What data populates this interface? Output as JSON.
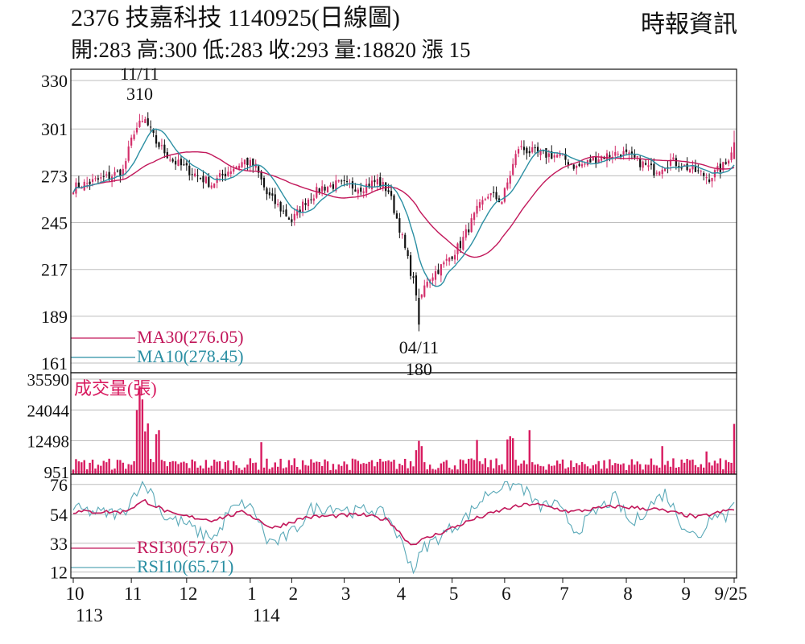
{
  "header": {
    "title": "2376  技嘉科技 1140925(日線圖)",
    "quote": "開:283 高:300 低:283 收:293 量:18820 漲 15",
    "source": "時報資訊"
  },
  "colors": {
    "grid": "#bdbdbd",
    "ma30": "#c2185b",
    "ma10": "#2b8fa3",
    "up": "#d32f6b",
    "down": "#111111",
    "volume": "#d81b60",
    "rsi30": "#c2185b",
    "rsi10": "#5aa9b8"
  },
  "chart_data": [
    {
      "type": "candlestick",
      "y_ticks": [
        "330",
        "301",
        "273",
        "245",
        "217",
        "189",
        "161"
      ],
      "ylim": [
        161,
        330
      ],
      "annotations": [
        {
          "date": "11/11",
          "value": "310"
        },
        {
          "date": "04/11",
          "value": "180"
        }
      ],
      "legend": [
        {
          "name": "MA30(276.05)",
          "color": "#c2185b"
        },
        {
          "name": "MA10(278.45)",
          "color": "#2b8fa3"
        }
      ],
      "anchors": [
        {
          "i": 0,
          "v": 266
        },
        {
          "i": 12,
          "v": 272
        },
        {
          "i": 18,
          "v": 276
        },
        {
          "i": 22,
          "v": 300
        },
        {
          "i": 26,
          "v": 306
        },
        {
          "i": 30,
          "v": 293
        },
        {
          "i": 36,
          "v": 282
        },
        {
          "i": 44,
          "v": 274
        },
        {
          "i": 50,
          "v": 268
        },
        {
          "i": 56,
          "v": 276
        },
        {
          "i": 62,
          "v": 282
        },
        {
          "i": 66,
          "v": 278
        },
        {
          "i": 70,
          "v": 262
        },
        {
          "i": 74,
          "v": 255
        },
        {
          "i": 79,
          "v": 246
        },
        {
          "i": 84,
          "v": 258
        },
        {
          "i": 90,
          "v": 266
        },
        {
          "i": 96,
          "v": 268
        },
        {
          "i": 104,
          "v": 266
        },
        {
          "i": 110,
          "v": 270
        },
        {
          "i": 114,
          "v": 264
        },
        {
          "i": 118,
          "v": 242
        },
        {
          "i": 122,
          "v": 216
        },
        {
          "i": 125,
          "v": 197
        },
        {
          "i": 128,
          "v": 211
        },
        {
          "i": 134,
          "v": 220
        },
        {
          "i": 140,
          "v": 232
        },
        {
          "i": 146,
          "v": 252
        },
        {
          "i": 150,
          "v": 262
        },
        {
          "i": 155,
          "v": 258
        },
        {
          "i": 161,
          "v": 290
        },
        {
          "i": 168,
          "v": 286
        },
        {
          "i": 176,
          "v": 285
        },
        {
          "i": 182,
          "v": 278
        },
        {
          "i": 190,
          "v": 284
        },
        {
          "i": 198,
          "v": 287
        },
        {
          "i": 204,
          "v": 282
        },
        {
          "i": 210,
          "v": 276
        },
        {
          "i": 216,
          "v": 282
        },
        {
          "i": 222,
          "v": 278
        },
        {
          "i": 230,
          "v": 272
        },
        {
          "i": 236,
          "v": 280
        },
        {
          "i": 239,
          "v": 293
        }
      ],
      "sessions": 240
    },
    {
      "type": "bar",
      "title": "成交量(張)",
      "y_ticks": [
        "35590",
        "24044",
        "12498",
        "951"
      ],
      "ylim": [
        0,
        35590
      ],
      "spikes": [
        {
          "i": 23,
          "v": 24000
        },
        {
          "i": 24,
          "v": 33000
        },
        {
          "i": 25,
          "v": 28000
        },
        {
          "i": 26,
          "v": 16000
        },
        {
          "i": 27,
          "v": 19000
        },
        {
          "i": 30,
          "v": 15000
        },
        {
          "i": 31,
          "v": 16500
        },
        {
          "i": 68,
          "v": 12000
        },
        {
          "i": 124,
          "v": 9000
        },
        {
          "i": 125,
          "v": 12500
        },
        {
          "i": 126,
          "v": 10500
        },
        {
          "i": 146,
          "v": 12800
        },
        {
          "i": 157,
          "v": 13000
        },
        {
          "i": 158,
          "v": 14200
        },
        {
          "i": 159,
          "v": 13500
        },
        {
          "i": 165,
          "v": 16500
        },
        {
          "i": 213,
          "v": 10500
        },
        {
          "i": 229,
          "v": 8500
        },
        {
          "i": 239,
          "v": 18820
        }
      ]
    },
    {
      "type": "line",
      "y_ticks": [
        "76",
        "54",
        "33",
        "12"
      ],
      "ylim": [
        10,
        80
      ],
      "legend": [
        {
          "name": "RSI30(57.67)",
          "color": "#c2185b"
        },
        {
          "name": "RSI10(65.71)",
          "color": "#5aa9b8"
        }
      ],
      "rsi10_anchors": [
        {
          "i": 0,
          "v": 58
        },
        {
          "i": 10,
          "v": 55
        },
        {
          "i": 18,
          "v": 55
        },
        {
          "i": 24,
          "v": 76
        },
        {
          "i": 28,
          "v": 72
        },
        {
          "i": 33,
          "v": 52
        },
        {
          "i": 40,
          "v": 48
        },
        {
          "i": 46,
          "v": 40
        },
        {
          "i": 52,
          "v": 38
        },
        {
          "i": 56,
          "v": 56
        },
        {
          "i": 62,
          "v": 62
        },
        {
          "i": 66,
          "v": 55
        },
        {
          "i": 70,
          "v": 35
        },
        {
          "i": 74,
          "v": 34
        },
        {
          "i": 80,
          "v": 42
        },
        {
          "i": 86,
          "v": 58
        },
        {
          "i": 94,
          "v": 60
        },
        {
          "i": 102,
          "v": 56
        },
        {
          "i": 108,
          "v": 58
        },
        {
          "i": 114,
          "v": 52
        },
        {
          "i": 120,
          "v": 28
        },
        {
          "i": 123,
          "v": 14
        },
        {
          "i": 127,
          "v": 30
        },
        {
          "i": 134,
          "v": 40
        },
        {
          "i": 142,
          "v": 52
        },
        {
          "i": 150,
          "v": 70
        },
        {
          "i": 156,
          "v": 76
        },
        {
          "i": 162,
          "v": 75
        },
        {
          "i": 168,
          "v": 60
        },
        {
          "i": 174,
          "v": 62
        },
        {
          "i": 182,
          "v": 42
        },
        {
          "i": 190,
          "v": 58
        },
        {
          "i": 196,
          "v": 66
        },
        {
          "i": 202,
          "v": 46
        },
        {
          "i": 208,
          "v": 60
        },
        {
          "i": 214,
          "v": 70
        },
        {
          "i": 220,
          "v": 48
        },
        {
          "i": 226,
          "v": 36
        },
        {
          "i": 232,
          "v": 58
        },
        {
          "i": 236,
          "v": 52
        },
        {
          "i": 239,
          "v": 66
        }
      ],
      "rsi30_anchors": [
        {
          "i": 0,
          "v": 56
        },
        {
          "i": 18,
          "v": 56
        },
        {
          "i": 26,
          "v": 64
        },
        {
          "i": 36,
          "v": 54
        },
        {
          "i": 50,
          "v": 50
        },
        {
          "i": 62,
          "v": 56
        },
        {
          "i": 72,
          "v": 44
        },
        {
          "i": 84,
          "v": 52
        },
        {
          "i": 104,
          "v": 54
        },
        {
          "i": 114,
          "v": 50
        },
        {
          "i": 122,
          "v": 32
        },
        {
          "i": 132,
          "v": 40
        },
        {
          "i": 144,
          "v": 50
        },
        {
          "i": 156,
          "v": 58
        },
        {
          "i": 166,
          "v": 62
        },
        {
          "i": 180,
          "v": 56
        },
        {
          "i": 196,
          "v": 60
        },
        {
          "i": 210,
          "v": 58
        },
        {
          "i": 226,
          "v": 52
        },
        {
          "i": 239,
          "v": 58
        }
      ]
    }
  ],
  "x_axis": {
    "month_labels": [
      {
        "label": "10",
        "i": 0
      },
      {
        "label": "11",
        "i": 21
      },
      {
        "label": "12",
        "i": 41
      },
      {
        "label": "1",
        "i": 64
      },
      {
        "label": "2",
        "i": 79
      },
      {
        "label": "3",
        "i": 98
      },
      {
        "label": "4",
        "i": 118
      },
      {
        "label": "5",
        "i": 137
      },
      {
        "label": "6",
        "i": 156
      },
      {
        "label": "7",
        "i": 177
      },
      {
        "label": "8",
        "i": 200
      },
      {
        "label": "9",
        "i": 221
      },
      {
        "label": "9/25",
        "i": 239
      }
    ],
    "year_labels": [
      {
        "label": "113",
        "i": 0
      },
      {
        "label": "114",
        "i": 64
      }
    ]
  }
}
